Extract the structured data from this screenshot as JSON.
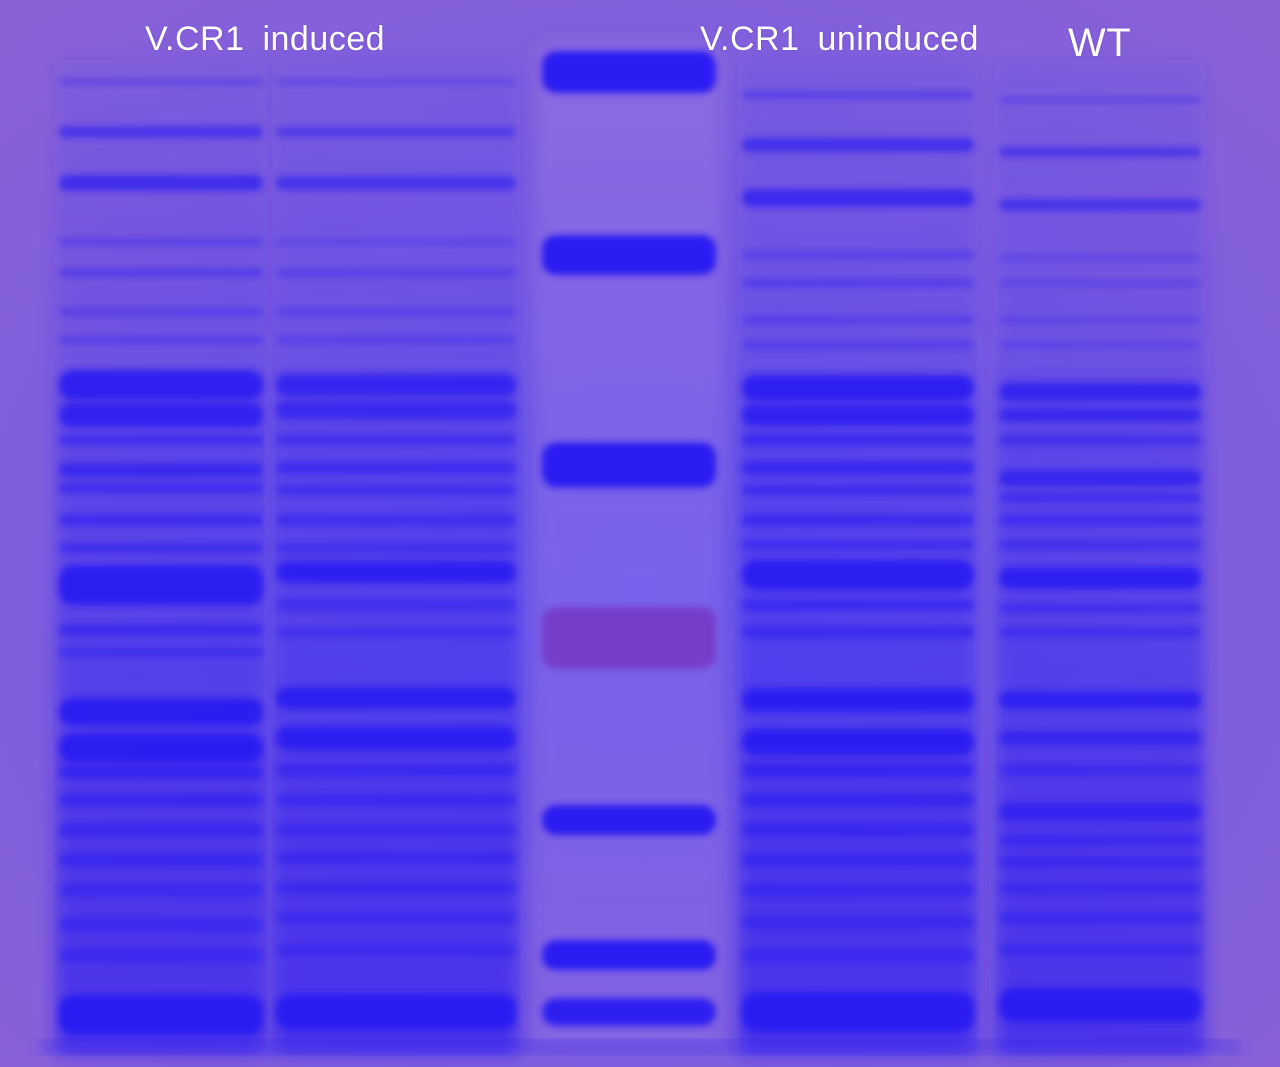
{
  "labels": {
    "induced": "V.CR1 induced",
    "uninduced": "V.CR1 uninduced",
    "wt": "WT"
  },
  "colors": {
    "gel_center": "#6c58ea",
    "gel_edge": "#8b62d6",
    "stain": "#2a1cf2",
    "ladder_purple_band": "#7438c4",
    "label_text": "#ffffff"
  }
}
